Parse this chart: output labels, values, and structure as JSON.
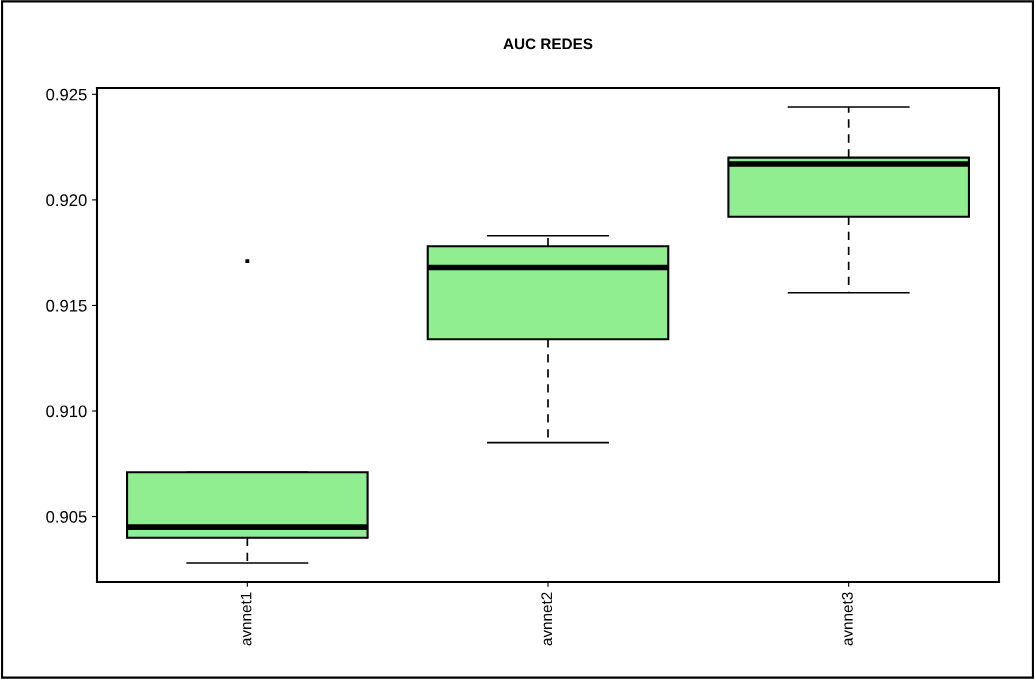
{
  "chart_data": {
    "type": "box",
    "title": "AUC REDES",
    "categories": [
      "avnnet1",
      "avnnet2",
      "avnnet3"
    ],
    "boxes": [
      {
        "low": 0.9028,
        "q1": 0.904,
        "median": 0.9045,
        "q3": 0.9071,
        "high": 0.9071,
        "outliers": [
          0.9171
        ]
      },
      {
        "low": 0.9085,
        "q1": 0.9134,
        "median": 0.9168,
        "q3": 0.9178,
        "high": 0.9183
      },
      {
        "low": 0.9156,
        "q1": 0.9192,
        "median": 0.9217,
        "q3": 0.922,
        "high": 0.9244
      }
    ],
    "color": "#90ee90",
    "ylim": [
      0.9019,
      0.9253
    ],
    "yticks": [
      {
        "value": 0.905,
        "label": "0.905"
      },
      {
        "value": 0.91,
        "label": "0.910"
      },
      {
        "value": 0.915,
        "label": "0.915"
      },
      {
        "value": 0.92,
        "label": "0.920"
      },
      {
        "value": 0.925,
        "label": "0.925"
      }
    ],
    "grid": false
  }
}
